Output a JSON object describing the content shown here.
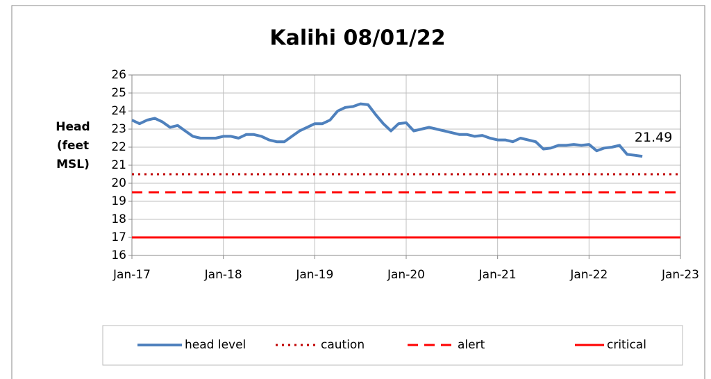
{
  "chart_data": {
    "type": "line",
    "title": "Kalihi 08/01/22",
    "ylabel": "Head (feet MSL)",
    "x": [
      "2017-01",
      "2017-02",
      "2017-03",
      "2017-04",
      "2017-05",
      "2017-06",
      "2017-07",
      "2017-08",
      "2017-09",
      "2017-10",
      "2017-11",
      "2017-12",
      "2018-01",
      "2018-02",
      "2018-03",
      "2018-04",
      "2018-05",
      "2018-06",
      "2018-07",
      "2018-08",
      "2018-09",
      "2018-10",
      "2018-11",
      "2018-12",
      "2019-01",
      "2019-02",
      "2019-03",
      "2019-04",
      "2019-05",
      "2019-06",
      "2019-07",
      "2019-08",
      "2019-09",
      "2019-10",
      "2019-11",
      "2019-12",
      "2020-01",
      "2020-02",
      "2020-03",
      "2020-04",
      "2020-05",
      "2020-06",
      "2020-07",
      "2020-08",
      "2020-09",
      "2020-10",
      "2020-11",
      "2020-12",
      "2021-01",
      "2021-02",
      "2021-03",
      "2021-04",
      "2021-05",
      "2021-06",
      "2021-07",
      "2021-08",
      "2021-09",
      "2021-10",
      "2021-11",
      "2021-12",
      "2022-01",
      "2022-02",
      "2022-03",
      "2022-04",
      "2022-05",
      "2022-06",
      "2022-07",
      "2022-08"
    ],
    "series": [
      {
        "name": "head level",
        "color": "#4f81bd",
        "values": [
          23.5,
          23.3,
          23.5,
          23.6,
          23.4,
          23.1,
          23.2,
          22.9,
          22.6,
          22.5,
          22.5,
          22.5,
          22.6,
          22.6,
          22.5,
          22.7,
          22.7,
          22.6,
          22.4,
          22.3,
          22.3,
          22.6,
          22.9,
          23.1,
          23.3,
          23.3,
          23.5,
          24.0,
          24.2,
          24.25,
          24.4,
          24.35,
          23.8,
          23.3,
          22.9,
          23.3,
          23.35,
          22.9,
          23.0,
          23.1,
          23.0,
          22.9,
          22.8,
          22.7,
          22.7,
          22.6,
          22.65,
          22.5,
          22.4,
          22.4,
          22.3,
          22.5,
          22.4,
          22.3,
          21.9,
          21.95,
          22.1,
          22.1,
          22.15,
          22.1,
          22.15,
          21.8,
          21.95,
          22.0,
          22.1,
          21.6,
          21.55,
          21.49
        ],
        "value_labels": [
          null,
          null,
          null,
          null,
          null,
          null,
          null,
          null,
          null,
          null,
          null,
          null,
          null,
          null,
          null,
          null,
          null,
          null,
          null,
          null,
          null,
          null,
          null,
          null,
          null,
          null,
          null,
          null,
          null,
          null,
          null,
          null,
          null,
          null,
          null,
          null,
          null,
          null,
          null,
          null,
          null,
          null,
          null,
          null,
          null,
          null,
          null,
          null,
          null,
          null,
          null,
          null,
          null,
          null,
          null,
          null,
          null,
          null,
          null,
          null,
          null,
          null,
          null,
          null,
          null,
          null,
          null,
          "21.49"
        ]
      }
    ],
    "reference_lines": [
      {
        "name": "caution",
        "value": 20.5,
        "color": "#c00000",
        "style": "dotted"
      },
      {
        "name": "alert",
        "value": 19.5,
        "color": "#ff0000",
        "style": "dashed"
      },
      {
        "name": "critical",
        "value": 17,
        "color": "#ff0000",
        "style": "solid"
      }
    ],
    "xlim": [
      "2017-01",
      "2023-01"
    ],
    "xticks": [
      {
        "value": "2017-01",
        "label": "Jan-17"
      },
      {
        "value": "2018-01",
        "label": "Jan-18"
      },
      {
        "value": "2019-01",
        "label": "Jan-19"
      },
      {
        "value": "2020-01",
        "label": "Jan-20"
      },
      {
        "value": "2021-01",
        "label": "Jan-21"
      },
      {
        "value": "2022-01",
        "label": "Jan-22"
      },
      {
        "value": "2023-01",
        "label": "Jan-23"
      }
    ],
    "ylim": [
      16,
      26
    ],
    "yticks": [
      16,
      17,
      18,
      19,
      20,
      21,
      22,
      23,
      24,
      25,
      26
    ],
    "grid": true,
    "legend": "bottom"
  }
}
